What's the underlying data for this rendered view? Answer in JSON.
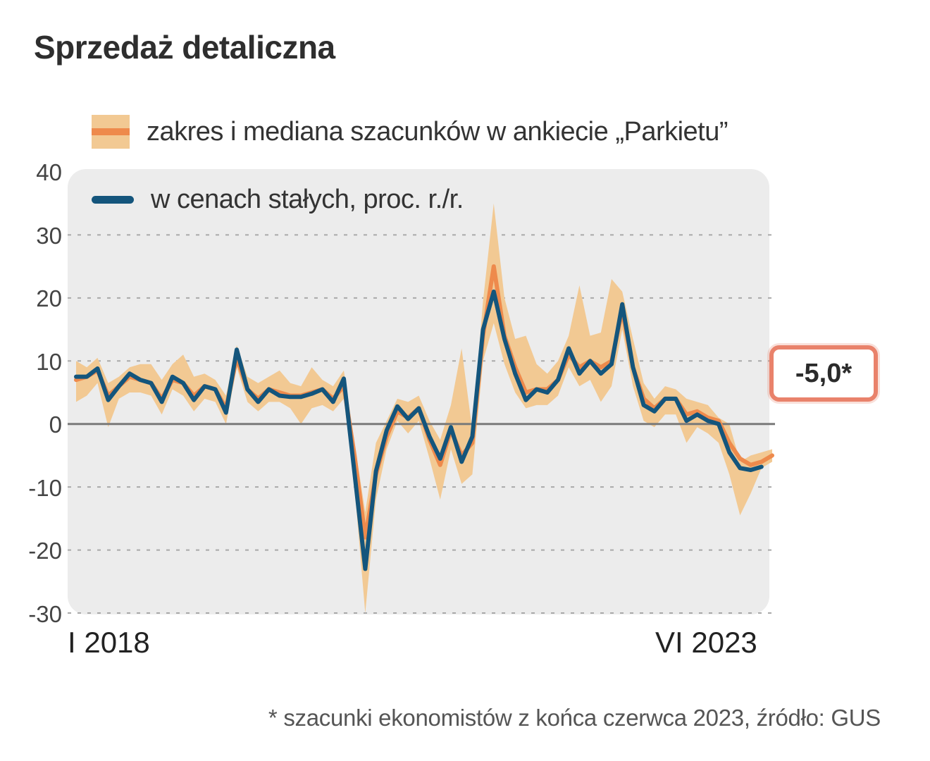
{
  "chart_data": {
    "type": "line",
    "title": "Sprzedaż detaliczna",
    "legend": [
      {
        "name": "zakres i mediana szacunków w ankiecie „Parkietu”",
        "kind": "band",
        "band_color": "#f2c993",
        "median_color": "#ee8a4c"
      },
      {
        "name": "w cenach stałych, proc. r./r.",
        "kind": "line",
        "color": "#14557c"
      }
    ],
    "x_labels": {
      "start": "I 2018",
      "end": "VI 2023"
    },
    "yticks": [
      40,
      30,
      20,
      10,
      0,
      -10,
      -20,
      -30
    ],
    "ylim": [
      -30,
      40
    ],
    "grid": "dashed",
    "actual": [
      7.5,
      7.5,
      8.8,
      3.8,
      6.0,
      8.0,
      7.0,
      6.5,
      3.5,
      7.5,
      6.5,
      3.8,
      6.0,
      5.5,
      1.8,
      11.8,
      5.5,
      3.5,
      5.5,
      4.5,
      4.3,
      4.3,
      4.8,
      5.5,
      3.5,
      7.2,
      -7.8,
      -23.0,
      -7.5,
      -1.0,
      2.8,
      0.8,
      2.5,
      -2.0,
      -5.5,
      -0.5,
      -6.0,
      -2.0,
      15.0,
      21.0,
      13.5,
      8.0,
      3.8,
      5.5,
      5.0,
      7.0,
      12.0,
      8.0,
      10.0,
      8.0,
      9.5,
      19.0,
      9.0,
      3.0,
      2.0,
      4.0,
      4.0,
      0.5,
      1.5,
      0.5,
      0.0,
      -4.5,
      -7.0,
      -7.3,
      -6.8
    ],
    "median": [
      7.0,
      7.5,
      8.5,
      4.5,
      6.0,
      7.5,
      7.0,
      6.5,
      4.0,
      7.0,
      6.5,
      4.5,
      6.0,
      5.5,
      2.5,
      10.5,
      5.5,
      4.0,
      5.5,
      5.0,
      4.5,
      4.5,
      5.0,
      5.5,
      4.0,
      6.0,
      -5.0,
      -18.0,
      -8.0,
      -2.0,
      2.0,
      1.0,
      2.5,
      -2.5,
      -6.5,
      -1.0,
      -5.0,
      -3.0,
      14.0,
      25.0,
      14.0,
      9.0,
      5.0,
      5.5,
      5.5,
      7.0,
      11.0,
      9.0,
      10.0,
      9.0,
      10.0,
      18.0,
      9.0,
      4.0,
      2.5,
      4.0,
      4.0,
      1.5,
      2.0,
      1.0,
      0.5,
      -3.0,
      -5.5,
      -6.5,
      -6.0,
      -5.0
    ],
    "low": [
      3.5,
      4.5,
      6.5,
      -0.5,
      4.0,
      5.0,
      5.0,
      4.5,
      1.5,
      5.5,
      4.5,
      2.0,
      4.0,
      3.5,
      0.0,
      9.0,
      3.5,
      2.0,
      3.5,
      3.5,
      2.5,
      0.0,
      2.5,
      3.0,
      2.0,
      4.0,
      -10.0,
      -30.0,
      -12.0,
      -4.0,
      0.5,
      -1.5,
      0.5,
      -5.5,
      -12.0,
      -4.0,
      -9.5,
      -8.0,
      10.0,
      16.0,
      9.5,
      5.0,
      2.5,
      3.0,
      3.0,
      4.5,
      9.0,
      6.0,
      7.0,
      3.5,
      6.0,
      15.0,
      6.0,
      0.5,
      -0.5,
      1.5,
      1.5,
      -3.0,
      -0.5,
      -1.5,
      -3.0,
      -8.0,
      -14.5,
      -11.0,
      -7.0,
      -6.0
    ],
    "high": [
      10.0,
      9.0,
      10.5,
      6.5,
      7.5,
      9.0,
      9.5,
      9.5,
      7.0,
      9.5,
      11.0,
      7.5,
      8.0,
      7.0,
      4.5,
      12.5,
      7.5,
      6.5,
      7.5,
      8.5,
      6.5,
      6.0,
      9.0,
      7.0,
      6.0,
      8.5,
      -3.0,
      -14.0,
      -3.0,
      0.5,
      4.0,
      3.5,
      4.5,
      0.5,
      -2.5,
      3.0,
      12.0,
      -1.0,
      19.5,
      35.0,
      20.0,
      13.5,
      14.0,
      9.5,
      8.0,
      10.0,
      14.0,
      22.0,
      14.0,
      14.5,
      23.0,
      21.0,
      13.5,
      6.5,
      4.0,
      6.0,
      5.5,
      4.0,
      3.5,
      3.0,
      1.0,
      0.0,
      -6.0,
      -5.0,
      -4.5,
      -4.0
    ],
    "callout_value": "-5,0*",
    "footnote": "* szacunki ekonomistów z końca czerwca 2023, źródło: GUS"
  }
}
